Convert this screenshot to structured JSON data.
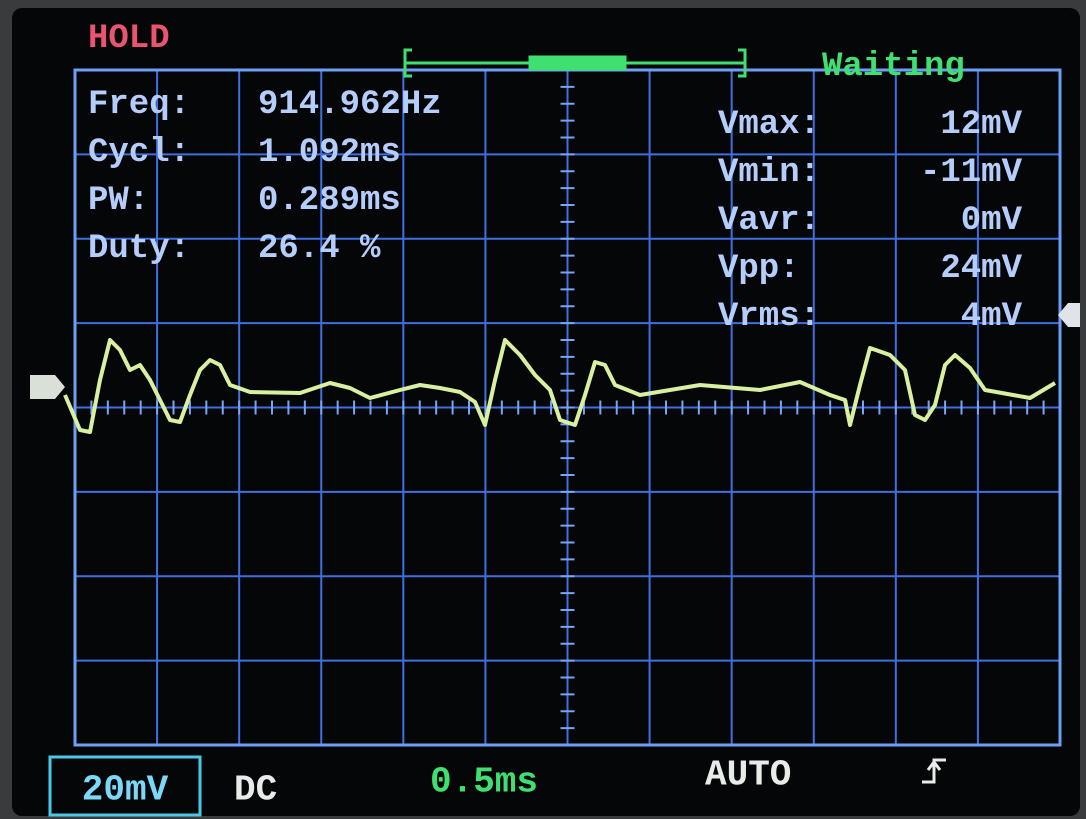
{
  "status": {
    "hold": "HOLD",
    "state": "Waiting"
  },
  "measurements": {
    "left": [
      {
        "label": "Freq:",
        "value": "914.962Hz"
      },
      {
        "label": "Cycl:",
        "value": "1.092ms"
      },
      {
        "label": "PW:",
        "value": "0.289ms"
      },
      {
        "label": "Duty:",
        "value": "26.4 %"
      }
    ],
    "right": [
      {
        "label": "Vmax:",
        "value": "12mV"
      },
      {
        "label": "Vmin:",
        "value": "-11mV"
      },
      {
        "label": "Vavr:",
        "value": "0mV"
      },
      {
        "label": "Vpp:",
        "value": "24mV"
      },
      {
        "label": "Vrms:",
        "value": "4mV"
      }
    ]
  },
  "footer": {
    "volts_per_div": "20mV",
    "coupling": "DC",
    "time_per_div": "0.5ms",
    "trigger_mode": "AUTO"
  }
}
